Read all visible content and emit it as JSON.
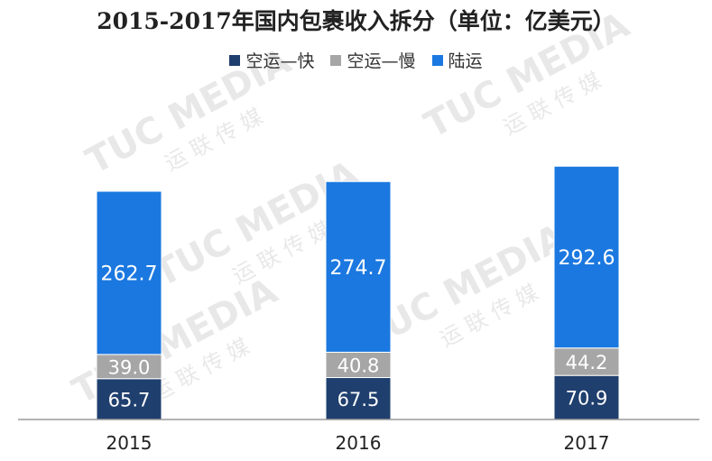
{
  "chart_data": {
    "type": "bar",
    "stacked": true,
    "title": "2015-2017年国内包裹收入拆分（单位：亿美元）",
    "categories": [
      "2015",
      "2016",
      "2017"
    ],
    "series": [
      {
        "name": "空运—快",
        "color": "#1f3f6e",
        "values": [
          65.7,
          67.5,
          70.9
        ]
      },
      {
        "name": "空运—慢",
        "color": "#a6a6a6",
        "values": [
          39.0,
          40.8,
          44.2
        ]
      },
      {
        "name": "陆运",
        "color": "#1b78e0",
        "values": [
          262.7,
          274.7,
          292.6
        ]
      }
    ],
    "legend_position": "top",
    "grid": false,
    "ylim": [
      0,
      420
    ]
  },
  "watermark": {
    "text": "TUC MEDIA",
    "subtext": "运 联 传 媒"
  }
}
